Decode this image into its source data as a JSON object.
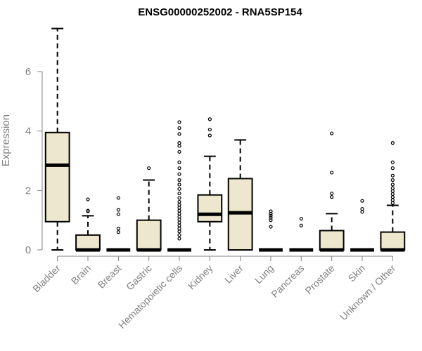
{
  "chart_data": {
    "type": "boxplot",
    "title": "ENSG00000252002 - RNA5SP154",
    "xlabel": "",
    "ylabel": "Expression",
    "ylim": [
      0,
      7.6
    ],
    "yticks": [
      0,
      2,
      4,
      6
    ],
    "grid": false,
    "legend": "none",
    "box_fill": "#ede7cd",
    "categories": [
      "Bladder",
      "Brain",
      "Breast",
      "Gastric",
      "Hematopoietic cells",
      "Kidney",
      "Liver",
      "Lung",
      "Pancreas",
      "Prostate",
      "Skin",
      "Unknown / Other"
    ],
    "boxes": [
      {
        "min": 0,
        "q1": 0.95,
        "median": 2.85,
        "q3": 3.95,
        "max": 7.45,
        "outliers": []
      },
      {
        "min": 0,
        "q1": 0,
        "median": 0,
        "q3": 0.5,
        "max": 1.15,
        "outliers": [
          1.3,
          1.32,
          1.7
        ]
      },
      {
        "min": 0,
        "q1": 0,
        "median": 0,
        "q3": 0,
        "max": 0,
        "outliers": [
          0.6,
          0.72,
          1.2,
          1.35,
          1.75
        ]
      },
      {
        "min": 0,
        "q1": 0,
        "median": 0,
        "q3": 1.0,
        "max": 2.35,
        "outliers": [
          2.75
        ]
      },
      {
        "min": 0,
        "q1": 0,
        "median": 0,
        "q3": 0,
        "max": 0,
        "outliers": [
          0.38,
          0.5,
          0.62,
          0.72,
          0.82,
          0.92,
          1.02,
          1.12,
          1.22,
          1.32,
          1.42,
          1.52,
          1.62,
          1.75,
          1.9,
          2.05,
          2.2,
          2.35,
          2.55,
          2.75,
          2.95,
          3.3,
          3.5,
          3.6,
          3.9,
          4.1,
          4.3
        ]
      },
      {
        "min": 0,
        "q1": 0.95,
        "median": 1.2,
        "q3": 1.85,
        "max": 3.15,
        "outliers": [
          3.85,
          4.05,
          4.4
        ]
      },
      {
        "min": 0,
        "q1": 0,
        "median": 1.25,
        "q3": 2.4,
        "max": 3.7,
        "outliers": []
      },
      {
        "min": 0,
        "q1": 0,
        "median": 0,
        "q3": 0,
        "max": 0,
        "outliers": [
          0.78,
          1.0,
          1.08,
          1.15,
          1.22,
          1.3
        ]
      },
      {
        "min": 0,
        "q1": 0,
        "median": 0,
        "q3": 0,
        "max": 0,
        "outliers": [
          0.82,
          1.05
        ]
      },
      {
        "min": 0,
        "q1": 0,
        "median": 0,
        "q3": 0.65,
        "max": 1.22,
        "outliers": [
          1.78,
          1.9,
          2.6,
          3.92
        ]
      },
      {
        "min": 0,
        "q1": 0,
        "median": 0,
        "q3": 0,
        "max": 0,
        "outliers": [
          1.28,
          1.38,
          1.65
        ]
      },
      {
        "min": 0,
        "q1": 0,
        "median": 0,
        "q3": 0.6,
        "max": 1.5,
        "outliers": [
          1.58,
          1.68,
          1.78,
          1.88,
          1.98,
          2.08,
          2.2,
          2.35,
          2.5,
          2.75,
          2.95,
          3.6
        ]
      }
    ]
  }
}
